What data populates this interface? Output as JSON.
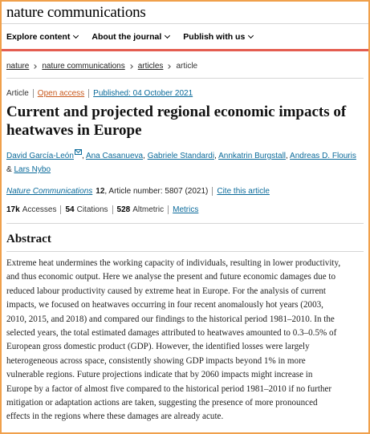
{
  "brand": "nature communications",
  "nav": {
    "explore": "Explore content",
    "journal": "About the journal",
    "publish": "Publish with us"
  },
  "breadcrumb": [
    "nature",
    "nature communications",
    "articles",
    "article"
  ],
  "meta": {
    "type": "Article",
    "access": "Open access",
    "published": "Published: 04 October 2021"
  },
  "title": "Current and projected regional economic impacts of heatwaves in Europe",
  "authors": [
    "David García-León",
    "Ana Casanueva",
    "Gabriele Standardi",
    "Annkatrin Burgstall",
    "Andreas D. Flouris",
    "Lars Nybo"
  ],
  "authors_and": "&",
  "citation": {
    "journal": "Nature Communications",
    "volume": "12",
    "article": ", Article number: 5807 (2021)",
    "cite_link": "Cite this article"
  },
  "metrics": {
    "accesses_value": "17k",
    "accesses_label": "Accesses",
    "citations_value": "54",
    "citations_label": "Citations",
    "altmetric_value": "528",
    "altmetric_label": "Altmetric",
    "metrics_link": "Metrics"
  },
  "abstract": {
    "heading": "Abstract",
    "lines": [
      "Extreme heat undermines the working capacity of individuals, resulting in lower productivity,",
      "and thus economic output. Here we analyse the present and future economic damages due to",
      "reduced labour productivity caused by extreme heat in Europe. For the analysis of current",
      "impacts, we focused on heatwaves occurring in four recent anomalously hot years (2003,",
      "2010, 2015, and 2018) and compared our findings to the historical period 1981–2010. In the",
      "selected years, the total estimated damages attributed to heatwaves amounted to 0.3–0.5% of",
      "European gross domestic product (GDP). However, the identified losses were largely",
      "heterogeneous across space, consistently showing GDP impacts beyond 1% in more",
      "vulnerable regions. Future projections indicate that by 2060 impacts might increase in",
      "Europe by a factor of almost five compared to the historical period 1981–2010 if no further",
      "mitigation or adaptation actions are taken, suggesting the presence of more pronounced",
      "effects in the regions where these damages are already acute."
    ]
  }
}
